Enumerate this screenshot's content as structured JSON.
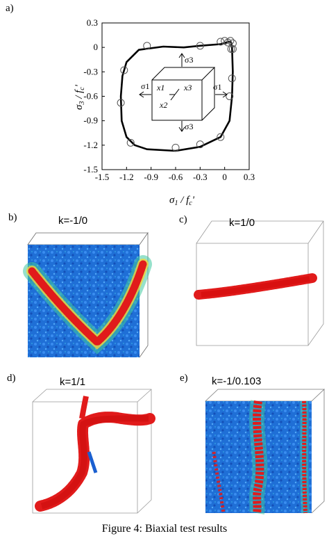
{
  "panels": {
    "a": "a)",
    "b": "b)",
    "c": "c)",
    "d": "d)",
    "e": "e)"
  },
  "k_labels": {
    "b": "k=-1/0",
    "c": "k=1/0",
    "d": "k=1/1",
    "e": "k=-1/0.103"
  },
  "inset_labels": {
    "sigma3_top": "σ3",
    "sigma3_bottom": "σ3",
    "sigma1_left": "σ1",
    "sigma1_right": "σ1",
    "x1": "x1",
    "x2": "x2",
    "x3": "x3"
  },
  "caption": "Figure 4: Biaxial test results",
  "colors": {
    "curve": "#000000",
    "marker": "#555555",
    "blue": "#1a5fd0",
    "red": "#e11b1b",
    "yellow": "#f0d030",
    "green": "#34c07a"
  },
  "chart_data": {
    "type": "line",
    "xlabel": "σ1 / fc'",
    "ylabel": "σ3 / fc'",
    "xlim": [
      -1.5,
      0.3
    ],
    "ylim": [
      -1.5,
      0.3
    ],
    "xticks": [
      "-1.5",
      "-1.2",
      "-0.9",
      "-0.6",
      "-0.3",
      "0",
      "0.3"
    ],
    "yticks": [
      "0.3",
      "0",
      "-0.3",
      "-0.6",
      "-0.9",
      "-1.2",
      "-1.5"
    ],
    "grid": false,
    "series": [
      {
        "kind": "curve",
        "x": [
          0.08,
          0.09,
          0.1,
          0.09,
          0.06,
          -0.05,
          -0.3,
          -0.6,
          -0.95,
          -1.1,
          -1.2,
          -1.26,
          -1.27,
          -1.25,
          -1.2,
          -1.05,
          -0.75,
          -0.5,
          -0.3,
          -0.05,
          0.02,
          0.05,
          0.07,
          0.08
        ],
        "y": [
          0.06,
          0.0,
          -0.3,
          -0.6,
          -0.9,
          -1.1,
          -1.22,
          -1.27,
          -1.25,
          -1.2,
          -1.1,
          -0.9,
          -0.6,
          -0.35,
          -0.18,
          -0.03,
          0.01,
          0.0,
          0.02,
          0.04,
          0.06,
          0.07,
          0.07,
          0.06
        ]
      },
      {
        "kind": "markers",
        "x": [
          0.0,
          0.04,
          0.07,
          0.1,
          0.09,
          0.06,
          -0.05,
          -0.3,
          -0.6,
          -1.15,
          -1.27,
          -1.23,
          -0.05,
          -0.3,
          -0.95,
          0.08,
          0.1
        ],
        "y": [
          0.08,
          0.06,
          0.08,
          0.05,
          -0.38,
          -0.6,
          -1.1,
          -1.19,
          -1.23,
          -1.17,
          -0.68,
          -0.28,
          0.07,
          0.02,
          0.02,
          -0.02,
          -0.02
        ]
      }
    ]
  }
}
